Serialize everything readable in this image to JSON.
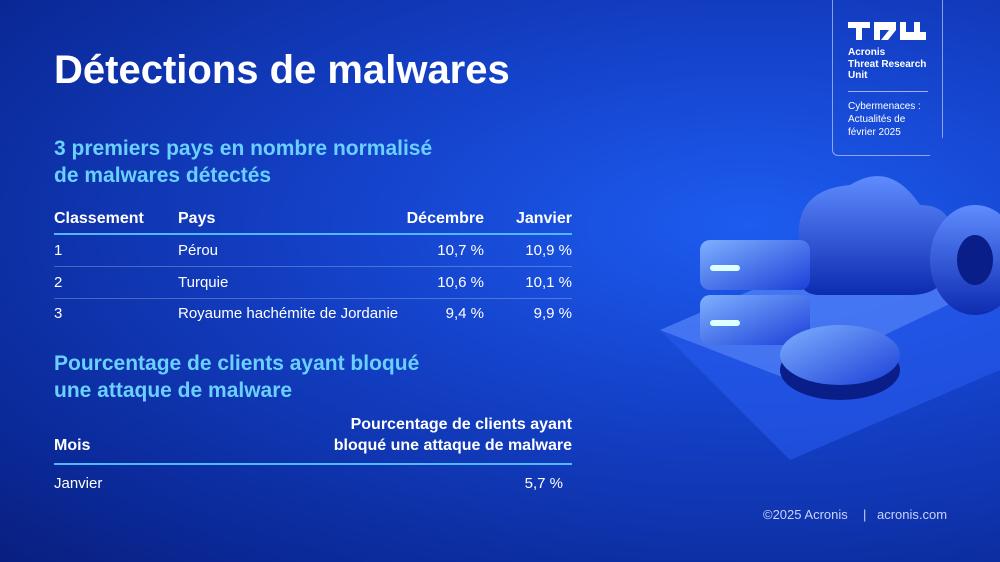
{
  "title": "Détections de malwares",
  "section1": {
    "heading": [
      "3 premiers pays en nombre normalisé",
      "de malwares détectés"
    ],
    "table": {
      "header": [
        "Classement",
        "Pays",
        "Décembre",
        "Janvier"
      ],
      "rows": [
        [
          "1",
          "Pérou",
          "10,7 %",
          "10,9 %"
        ],
        [
          "2",
          "Turquie",
          "10,6 %",
          "10,1 %"
        ],
        [
          "3",
          "Royaume hachémite de Jordanie",
          "9,4 %",
          "9,9 %"
        ]
      ]
    }
  },
  "section2": {
    "heading": [
      "Pourcentage de clients ayant bloqué",
      "une attaque de malware"
    ],
    "table": {
      "header": [
        "Mois",
        [
          "Pourcentage de clients ayant",
          "bloqué une attaque de malware"
        ]
      ],
      "rows": [
        [
          "Janvier",
          "5,7 %"
        ]
      ]
    }
  },
  "badge": {
    "org": [
      "Acronis",
      "Threat Research",
      "Unit"
    ],
    "subtitle": [
      "Cybermenaces :",
      "Actualités de",
      "février 2025"
    ]
  },
  "footer": {
    "copyright": "©2025 Acronis",
    "separator": "|",
    "site": "acronis.com"
  }
}
